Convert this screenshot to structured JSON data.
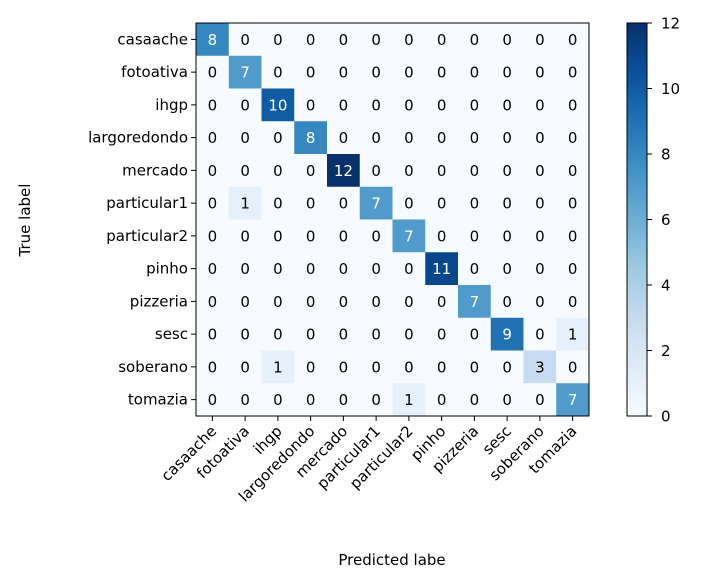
{
  "chart_data": {
    "type": "heatmap",
    "xlabel": "Predicted labe",
    "ylabel": "True label",
    "labels": [
      "casaache",
      "fotoativa",
      "ihgp",
      "largoredondo",
      "mercado",
      "particular1",
      "particular2",
      "pinho",
      "pizzeria",
      "sesc",
      "soberano",
      "tomazia"
    ],
    "matrix": [
      [
        8,
        0,
        0,
        0,
        0,
        0,
        0,
        0,
        0,
        0,
        0,
        0
      ],
      [
        0,
        7,
        0,
        0,
        0,
        0,
        0,
        0,
        0,
        0,
        0,
        0
      ],
      [
        0,
        0,
        10,
        0,
        0,
        0,
        0,
        0,
        0,
        0,
        0,
        0
      ],
      [
        0,
        0,
        0,
        8,
        0,
        0,
        0,
        0,
        0,
        0,
        0,
        0
      ],
      [
        0,
        0,
        0,
        0,
        12,
        0,
        0,
        0,
        0,
        0,
        0,
        0
      ],
      [
        0,
        1,
        0,
        0,
        0,
        7,
        0,
        0,
        0,
        0,
        0,
        0
      ],
      [
        0,
        0,
        0,
        0,
        0,
        0,
        7,
        0,
        0,
        0,
        0,
        0
      ],
      [
        0,
        0,
        0,
        0,
        0,
        0,
        0,
        11,
        0,
        0,
        0,
        0
      ],
      [
        0,
        0,
        0,
        0,
        0,
        0,
        0,
        0,
        7,
        0,
        0,
        0
      ],
      [
        0,
        0,
        0,
        0,
        0,
        0,
        0,
        0,
        0,
        9,
        0,
        1
      ],
      [
        0,
        0,
        1,
        0,
        0,
        0,
        0,
        0,
        0,
        0,
        3,
        0
      ],
      [
        0,
        0,
        0,
        0,
        0,
        0,
        1,
        0,
        0,
        0,
        0,
        7
      ]
    ],
    "colorbar": {
      "min": 0,
      "max": 12,
      "ticks": [
        0,
        2,
        4,
        6,
        8,
        10,
        12
      ]
    },
    "colormap": "Blues",
    "colors": {
      "low": "#f7fbff",
      "high": "#08306b",
      "text_light": "#ffffff",
      "text_dark": "#000000"
    }
  }
}
